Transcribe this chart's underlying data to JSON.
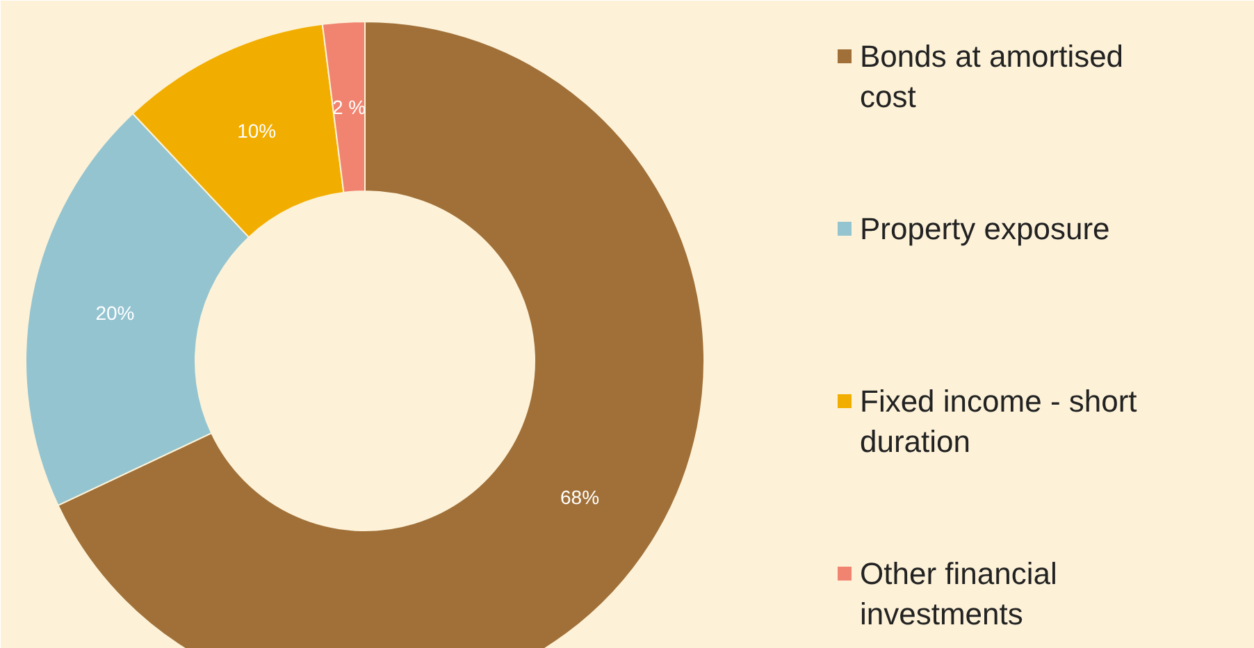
{
  "chart_data": {
    "type": "donut",
    "categories": [
      "Bonds at amortised cost",
      "Property exposure",
      "Fixed income - short duration",
      "Other financial investments"
    ],
    "values": [
      68,
      20,
      10,
      2
    ],
    "colors": [
      "#a07038",
      "#94c4d0",
      "#f2ae00",
      "#f08470"
    ],
    "value_labels": [
      "68%",
      "20%",
      "10%",
      "2 %"
    ],
    "legend": "right"
  }
}
